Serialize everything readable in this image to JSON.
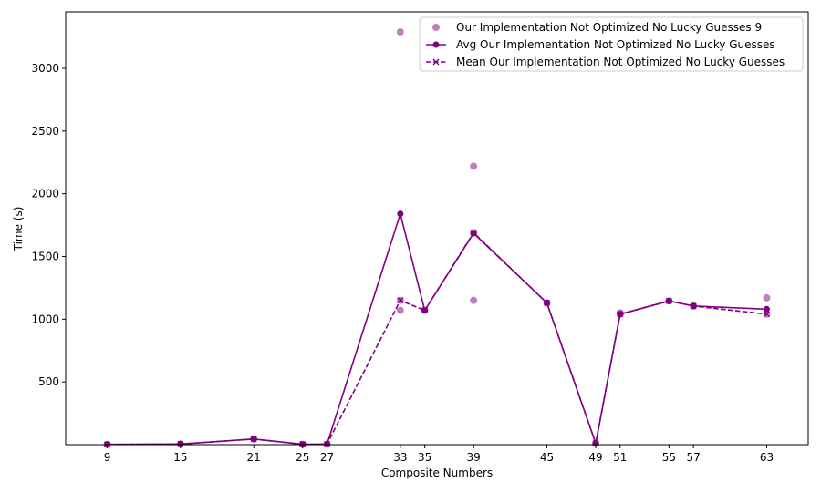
{
  "chart_data": {
    "type": "line",
    "title": "",
    "xlabel": "Composite Numbers",
    "ylabel": "Time (s)",
    "xlim": [
      5.6,
      66.4
    ],
    "ylim": [
      0,
      3450
    ],
    "x_ticks": [
      9,
      15,
      21,
      25,
      27,
      33,
      35,
      39,
      45,
      49,
      51,
      55,
      57,
      63
    ],
    "y_ticks": [
      500,
      1000,
      1500,
      2000,
      2500,
      3000
    ],
    "grid": false,
    "legend_position": "top-right",
    "color": "#800080",
    "series": [
      {
        "name": "Our Implementation Not Optimized No Lucky Guesses 9",
        "kind": "scatter",
        "points": [
          [
            9,
            2
          ],
          [
            15,
            5
          ],
          [
            21,
            45
          ],
          [
            25,
            3
          ],
          [
            27,
            4
          ],
          [
            33,
            3290
          ],
          [
            33,
            1150
          ],
          [
            33,
            1070
          ],
          [
            35,
            1070
          ],
          [
            39,
            2220
          ],
          [
            39,
            1690
          ],
          [
            39,
            1150
          ],
          [
            45,
            1130
          ],
          [
            49,
            10
          ],
          [
            51,
            1050
          ],
          [
            51,
            1040
          ],
          [
            55,
            1145
          ],
          [
            57,
            1105
          ],
          [
            63,
            1170
          ],
          [
            63,
            1040
          ]
        ]
      },
      {
        "name": "Avg Our Implementation Not Optimized No Lucky Guesses",
        "kind": "line",
        "marker": "circle",
        "line_style": "solid",
        "x": [
          9,
          15,
          21,
          25,
          27,
          33,
          35,
          39,
          45,
          49,
          51,
          55,
          57,
          63
        ],
        "y": [
          2,
          5,
          45,
          3,
          4,
          1840,
          1070,
          1685,
          1130,
          10,
          1040,
          1145,
          1105,
          1080
        ]
      },
      {
        "name": "Mean Our Implementation Not Optimized No Lucky Guesses",
        "kind": "line",
        "marker": "x",
        "line_style": "dashed",
        "x": [
          9,
          15,
          21,
          25,
          27,
          33,
          35,
          39,
          45,
          49,
          51,
          55,
          57,
          63
        ],
        "y": [
          2,
          5,
          45,
          3,
          4,
          1150,
          1070,
          1690,
          1130,
          10,
          1040,
          1145,
          1105,
          1040
        ]
      }
    ]
  }
}
